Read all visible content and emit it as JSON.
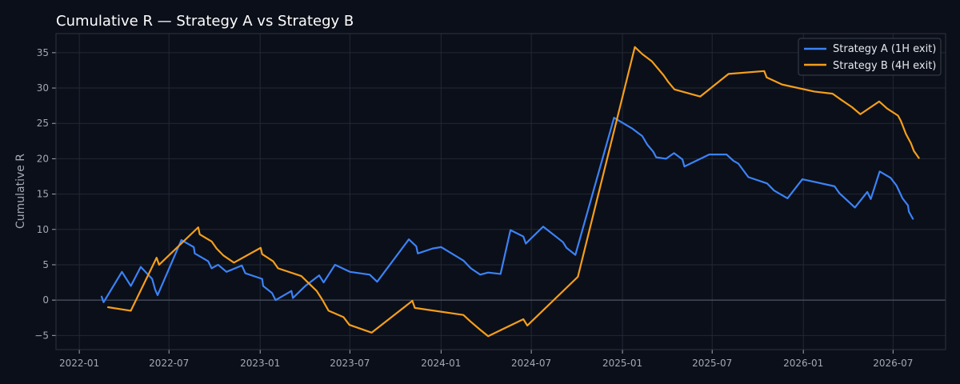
{
  "chart_data": {
    "type": "line",
    "title": "Cumulative R — Strategy A vs Strategy B",
    "xlabel": "",
    "ylabel": "Cumulative R",
    "x_axis_type": "date",
    "xlim": [
      "2021-11-15",
      "2026-10-15"
    ],
    "ylim": [
      -7,
      37.7
    ],
    "x_ticks": [
      "2022-01",
      "2022-07",
      "2023-01",
      "2023-07",
      "2024-01",
      "2024-07",
      "2025-01",
      "2025-07",
      "2026-01",
      "2026-07"
    ],
    "y_ticks": [
      -5,
      0,
      5,
      10,
      15,
      20,
      25,
      30,
      35
    ],
    "grid": true,
    "zero_line": true,
    "legend_position": "top-right",
    "colors": {
      "background": "#0b0f19",
      "grid": "#222836",
      "frame": "#2c3342",
      "zero_line": "#5a6070",
      "tick_text": "#a3a8b4",
      "title_text": "#ffffff"
    },
    "series": [
      {
        "name": "Strategy A (1H exit)",
        "color": "#3b82f6",
        "points": [
          [
            "2022-02-15",
            0.5
          ],
          [
            "2022-02-19",
            -0.3
          ],
          [
            "2022-03-28",
            4.0
          ],
          [
            "2022-04-15",
            2.0
          ],
          [
            "2022-05-05",
            4.7
          ],
          [
            "2022-05-28",
            3.0
          ],
          [
            "2022-06-03",
            1.5
          ],
          [
            "2022-06-08",
            0.7
          ],
          [
            "2022-07-26",
            8.5
          ],
          [
            "2022-08-20",
            7.5
          ],
          [
            "2022-08-22",
            6.6
          ],
          [
            "2022-09-18",
            5.5
          ],
          [
            "2022-09-25",
            4.5
          ],
          [
            "2022-10-08",
            5.0
          ],
          [
            "2022-10-25",
            4.0
          ],
          [
            "2022-11-25",
            4.9
          ],
          [
            "2022-12-02",
            3.8
          ],
          [
            "2023-01-05",
            3.0
          ],
          [
            "2023-01-07",
            2.0
          ],
          [
            "2023-01-25",
            1.0
          ],
          [
            "2023-02-01",
            0.0
          ],
          [
            "2023-03-05",
            1.3
          ],
          [
            "2023-03-08",
            0.3
          ],
          [
            "2023-04-02",
            2.0
          ],
          [
            "2023-04-30",
            3.5
          ],
          [
            "2023-05-09",
            2.5
          ],
          [
            "2023-06-01",
            5.0
          ],
          [
            "2023-07-01",
            4.0
          ],
          [
            "2023-08-10",
            3.6
          ],
          [
            "2023-08-25",
            2.6
          ],
          [
            "2023-10-28",
            8.6
          ],
          [
            "2023-11-12",
            7.6
          ],
          [
            "2023-11-15",
            6.6
          ],
          [
            "2023-12-15",
            7.3
          ],
          [
            "2024-01-01",
            7.5
          ],
          [
            "2024-02-15",
            5.6
          ],
          [
            "2024-03-01",
            4.5
          ],
          [
            "2024-03-20",
            3.6
          ],
          [
            "2024-04-05",
            3.9
          ],
          [
            "2024-04-30",
            3.7
          ],
          [
            "2024-05-20",
            9.9
          ],
          [
            "2024-06-15",
            9.0
          ],
          [
            "2024-06-20",
            8.0
          ],
          [
            "2024-07-25",
            10.4
          ],
          [
            "2024-09-03",
            8.2
          ],
          [
            "2024-09-10",
            7.4
          ],
          [
            "2024-09-28",
            6.4
          ],
          [
            "2024-12-15",
            25.8
          ],
          [
            "2025-01-20",
            24.3
          ],
          [
            "2025-02-10",
            23.2
          ],
          [
            "2025-02-20",
            22.0
          ],
          [
            "2025-03-04",
            21.0
          ],
          [
            "2025-03-10",
            20.2
          ],
          [
            "2025-03-30",
            20.0
          ],
          [
            "2025-04-15",
            20.8
          ],
          [
            "2025-05-02",
            19.9
          ],
          [
            "2025-05-06",
            18.9
          ],
          [
            "2025-06-25",
            20.6
          ],
          [
            "2025-07-30",
            20.6
          ],
          [
            "2025-08-13",
            19.7
          ],
          [
            "2025-08-23",
            19.3
          ],
          [
            "2025-09-12",
            17.4
          ],
          [
            "2025-10-20",
            16.5
          ],
          [
            "2025-11-03",
            15.5
          ],
          [
            "2025-11-30",
            14.4
          ],
          [
            "2025-12-30",
            17.1
          ],
          [
            "2026-03-05",
            16.1
          ],
          [
            "2026-03-15",
            15.1
          ],
          [
            "2026-04-15",
            13.1
          ],
          [
            "2026-05-10",
            15.3
          ],
          [
            "2026-05-17",
            14.3
          ],
          [
            "2026-06-04",
            18.2
          ],
          [
            "2026-06-26",
            17.3
          ],
          [
            "2026-07-08",
            16.2
          ],
          [
            "2026-07-20",
            14.4
          ],
          [
            "2026-07-31",
            13.4
          ],
          [
            "2026-08-02",
            12.5
          ],
          [
            "2026-08-10",
            11.5
          ]
        ]
      },
      {
        "name": "Strategy B (4H exit)",
        "color": "#f59e1b",
        "points": [
          [
            "2022-02-28",
            -1.0
          ],
          [
            "2022-04-15",
            -1.5
          ],
          [
            "2022-06-06",
            6.0
          ],
          [
            "2022-06-11",
            5.0
          ],
          [
            "2022-08-29",
            10.3
          ],
          [
            "2022-09-01",
            9.3
          ],
          [
            "2022-09-25",
            8.3
          ],
          [
            "2022-10-05",
            7.3
          ],
          [
            "2022-10-19",
            6.3
          ],
          [
            "2022-11-09",
            5.3
          ],
          [
            "2023-01-02",
            7.4
          ],
          [
            "2023-01-05",
            6.5
          ],
          [
            "2023-01-27",
            5.5
          ],
          [
            "2023-02-06",
            4.5
          ],
          [
            "2023-03-25",
            3.4
          ],
          [
            "2023-04-25",
            1.3
          ],
          [
            "2023-05-06",
            0.1
          ],
          [
            "2023-05-19",
            -1.5
          ],
          [
            "2023-06-18",
            -2.4
          ],
          [
            "2023-06-30",
            -3.5
          ],
          [
            "2023-08-14",
            -4.6
          ],
          [
            "2023-11-04",
            -0.1
          ],
          [
            "2023-11-09",
            -1.1
          ],
          [
            "2024-02-15",
            -2.1
          ],
          [
            "2024-02-29",
            -3.0
          ],
          [
            "2024-03-20",
            -4.2
          ],
          [
            "2024-04-05",
            -5.1
          ],
          [
            "2024-06-15",
            -2.7
          ],
          [
            "2024-06-23",
            -3.6
          ],
          [
            "2024-10-03",
            3.3
          ],
          [
            "2025-01-26",
            35.8
          ],
          [
            "2025-02-10",
            34.8
          ],
          [
            "2025-03-01",
            33.8
          ],
          [
            "2025-03-25",
            31.8
          ],
          [
            "2025-04-04",
            30.8
          ],
          [
            "2025-04-16",
            29.8
          ],
          [
            "2025-06-07",
            28.8
          ],
          [
            "2025-08-03",
            32.0
          ],
          [
            "2025-10-14",
            32.4
          ],
          [
            "2025-10-19",
            31.5
          ],
          [
            "2025-11-19",
            30.5
          ],
          [
            "2026-01-23",
            29.5
          ],
          [
            "2026-02-29",
            29.2
          ],
          [
            "2026-03-19",
            28.3
          ],
          [
            "2026-04-09",
            27.3
          ],
          [
            "2026-04-26",
            26.3
          ],
          [
            "2026-06-03",
            28.1
          ],
          [
            "2026-06-19",
            27.1
          ],
          [
            "2026-07-11",
            26.1
          ],
          [
            "2026-07-17",
            25.3
          ],
          [
            "2026-07-27",
            23.5
          ],
          [
            "2026-08-06",
            22.2
          ],
          [
            "2026-08-12",
            21.1
          ],
          [
            "2026-08-22",
            20.1
          ]
        ]
      }
    ]
  }
}
